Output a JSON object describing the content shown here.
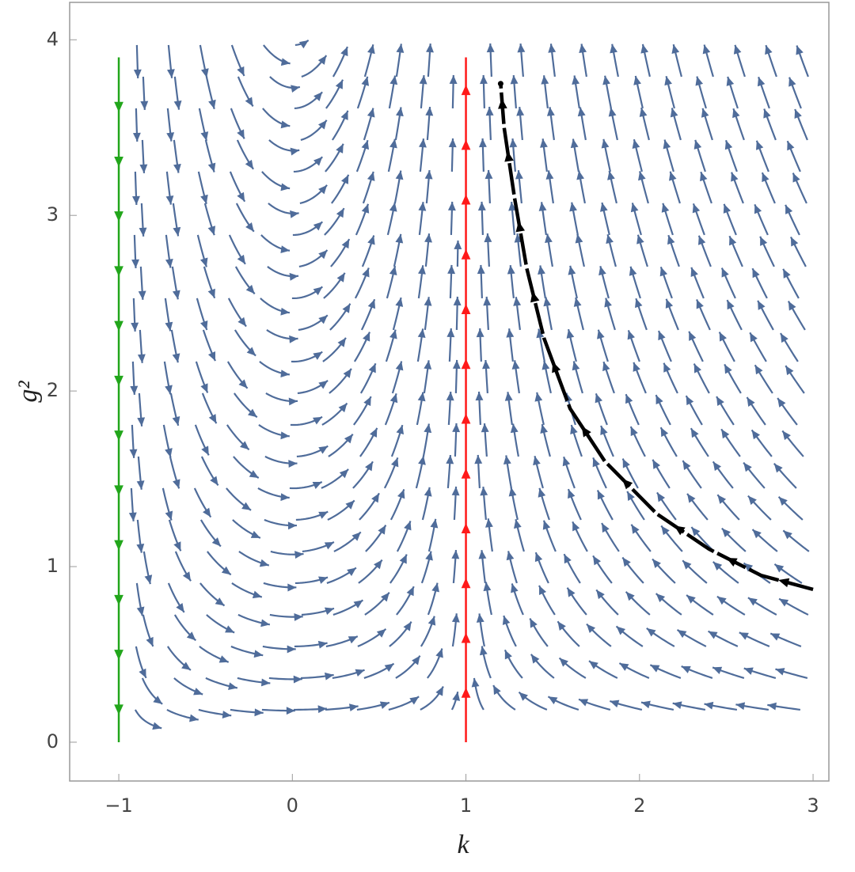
{
  "chart_data": {
    "type": "stream",
    "xlabel": "k",
    "ylabel": "g²",
    "xlim": [
      -1.283,
      3.091
    ],
    "ylim": [
      -0.221,
      4.213
    ],
    "xticks": [
      {
        "value": -1,
        "label": "−1"
      },
      0,
      1,
      2,
      3
    ],
    "yticks": [
      0,
      1,
      2,
      3,
      4
    ],
    "stream_color": "#4f6c9a",
    "series": [
      {
        "color": "#22a61b",
        "x": [
          -1,
          -1
        ],
        "y": [
          3.9,
          0
        ]
      },
      {
        "color": "#ff1a1a",
        "x": [
          1,
          1
        ],
        "y": [
          0,
          3.9
        ]
      },
      {
        "color": "#000000",
        "x": [
          3,
          2.7,
          2.4,
          2.1,
          1.8,
          1.6,
          1.45,
          1.35,
          1.28,
          1.22,
          1.2
        ],
        "y": [
          0.87,
          0.95,
          1.1,
          1.3,
          1.6,
          1.9,
          2.3,
          2.7,
          3.1,
          3.5,
          3.75
        ]
      }
    ]
  }
}
